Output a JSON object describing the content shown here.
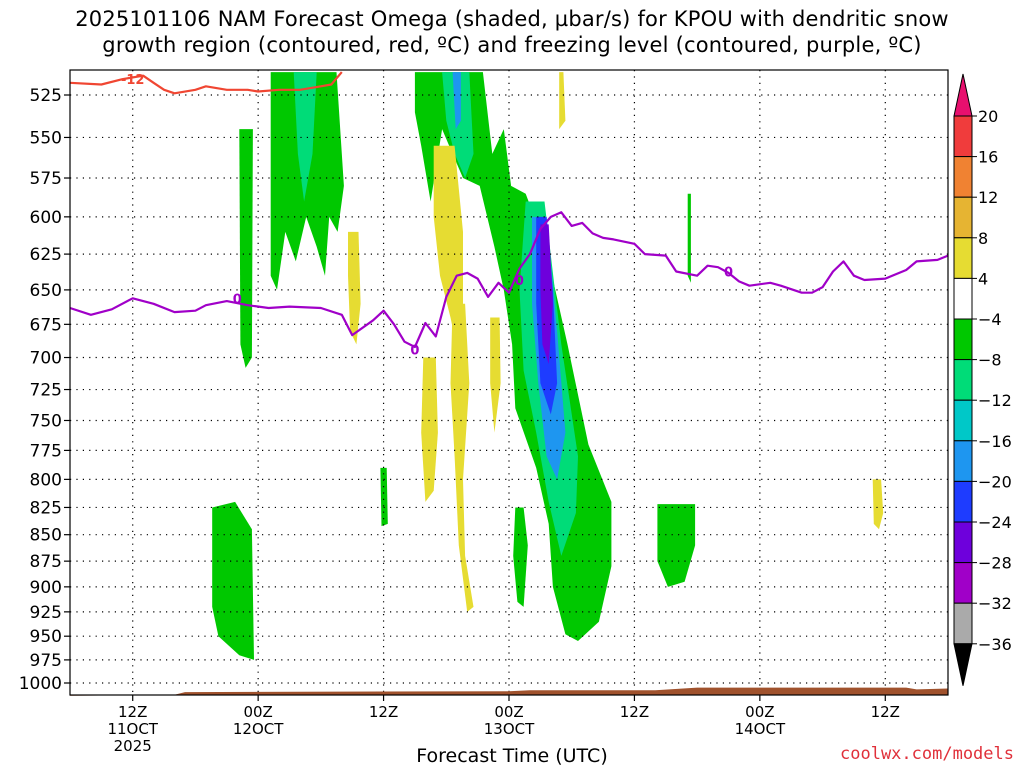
{
  "title_line1": "2025101106 NAM Forecast Omega (shaded, µbar/s) for KPOU with dendritic snow",
  "title_line2": "growth region (contoured, red, ºC) and freezing level (contoured, purple, ºC)",
  "xlabel": "Forecast Time (UTC)",
  "credit": "coolwx.com/models",
  "chart_data": {
    "type": "heatmap",
    "y_axis": {
      "label": "",
      "units": "hPa",
      "ticks": [
        525,
        550,
        575,
        600,
        625,
        650,
        675,
        700,
        725,
        750,
        775,
        800,
        825,
        850,
        875,
        900,
        925,
        950,
        975,
        1000
      ],
      "grid": true,
      "inverted": true
    },
    "x_axis": {
      "ticks": [
        {
          "hour": 6,
          "l1": "12Z",
          "l2": "11OCT",
          "l3": "2025"
        },
        {
          "hour": 18,
          "l1": "00Z",
          "l2": "12OCT",
          "l3": ""
        },
        {
          "hour": 30,
          "l1": "12Z",
          "l2": "",
          "l3": ""
        },
        {
          "hour": 42,
          "l1": "00Z",
          "l2": "13OCT",
          "l3": ""
        },
        {
          "hour": 54,
          "l1": "12Z",
          "l2": "",
          "l3": ""
        },
        {
          "hour": 66,
          "l1": "00Z",
          "l2": "14OCT",
          "l3": ""
        },
        {
          "hour": 78,
          "l1": "12Z",
          "l2": "",
          "l3": ""
        }
      ],
      "grid": true,
      "range_hours": [
        0,
        84
      ]
    },
    "colorbar": {
      "labels": [
        "20",
        "16",
        "12",
        "8",
        "4",
        "−4",
        "−8",
        "−12",
        "−16",
        "−20",
        "−24",
        "−28",
        "−32",
        "−36"
      ],
      "colors": [
        "#e8106e",
        "#f03c3c",
        "#f08232",
        "#e6b432",
        "#e6dc32",
        "#ffffff",
        "#00c800",
        "#00dc78",
        "#00c8c8",
        "#1e96f0",
        "#1e3cff",
        "#6e00dc",
        "#a000c8",
        "#aaaaaa",
        "#000000"
      ]
    },
    "series": [
      {
        "name": "-12",
        "color": "#f04632",
        "role": "dendritic snow growth contour",
        "points": [
          [
            0,
            518
          ],
          [
            3,
            519
          ],
          [
            5,
            516
          ],
          [
            7,
            514
          ],
          [
            8,
            518
          ],
          [
            9,
            522
          ],
          [
            10,
            524
          ],
          [
            12,
            522
          ],
          [
            13,
            520
          ],
          [
            15,
            522
          ],
          [
            17,
            522
          ],
          [
            18,
            523
          ],
          [
            20,
            522
          ],
          [
            22,
            522
          ],
          [
            24,
            520
          ],
          [
            25,
            519
          ],
          [
            26,
            512
          ]
        ]
      },
      {
        "name": "0",
        "color": "#a000c8",
        "role": "freezing level contour",
        "points": [
          [
            0,
            663
          ],
          [
            2,
            668
          ],
          [
            4,
            664
          ],
          [
            6,
            656
          ],
          [
            8,
            660
          ],
          [
            10,
            666
          ],
          [
            12,
            665
          ],
          [
            13,
            661
          ],
          [
            15,
            658
          ],
          [
            17,
            661
          ],
          [
            19,
            663
          ],
          [
            21,
            662
          ],
          [
            24,
            663
          ],
          [
            26,
            668
          ],
          [
            27,
            683
          ],
          [
            29,
            672
          ],
          [
            30,
            665
          ],
          [
            31,
            675
          ],
          [
            32,
            688
          ],
          [
            33,
            692
          ],
          [
            34,
            674
          ],
          [
            35,
            684
          ],
          [
            36,
            655
          ],
          [
            37,
            640
          ],
          [
            38,
            638
          ],
          [
            39,
            642
          ],
          [
            40,
            655
          ],
          [
            41,
            645
          ],
          [
            42,
            652
          ],
          [
            43,
            635
          ],
          [
            44,
            625
          ],
          [
            45,
            608
          ],
          [
            46,
            600
          ],
          [
            47,
            597
          ],
          [
            48,
            606
          ],
          [
            49,
            604
          ],
          [
            50,
            611
          ],
          [
            51,
            614
          ],
          [
            52,
            615
          ],
          [
            54,
            618
          ],
          [
            55,
            625
          ],
          [
            57,
            626
          ],
          [
            58,
            637
          ],
          [
            60,
            640
          ],
          [
            61,
            633
          ],
          [
            62,
            634
          ],
          [
            63,
            638
          ],
          [
            64,
            644
          ],
          [
            65,
            647
          ],
          [
            67,
            645
          ],
          [
            68,
            647
          ],
          [
            70,
            652
          ],
          [
            71,
            652
          ],
          [
            72,
            648
          ],
          [
            73,
            637
          ],
          [
            74,
            630
          ],
          [
            75,
            640
          ],
          [
            76,
            643
          ],
          [
            78,
            642
          ],
          [
            80,
            636
          ],
          [
            81,
            630
          ],
          [
            83,
            629
          ],
          [
            84,
            626
          ]
        ]
      }
    ],
    "labels_on_contours": [
      {
        "text": "-12",
        "color": "#f04632"
      },
      {
        "text": "0",
        "color": "#a000c8"
      },
      {
        "text": "0",
        "color": "#a000c8"
      },
      {
        "text": "0",
        "color": "#a000c8"
      },
      {
        "text": "0",
        "color": "#a000c8"
      }
    ]
  }
}
